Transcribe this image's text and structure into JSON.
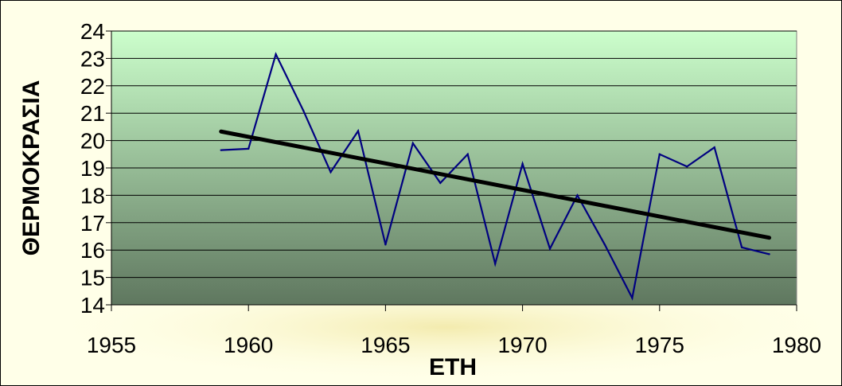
{
  "chart_data": {
    "type": "line",
    "title": "",
    "xlabel": "ΕΤΗ",
    "ylabel": "ΘΕΡΜΟΚΡΑΣΙΑ",
    "xlim": [
      1955,
      1980
    ],
    "ylim": [
      14,
      24
    ],
    "x_ticks": [
      1955,
      1960,
      1965,
      1970,
      1975,
      1980
    ],
    "y_ticks": [
      14,
      15,
      16,
      17,
      18,
      19,
      20,
      21,
      22,
      23,
      24
    ],
    "grid": true,
    "legend": "none",
    "series": [
      {
        "x": [
          1959,
          1960,
          1961,
          1962,
          1963,
          1964,
          1965,
          1966,
          1967,
          1968,
          1969,
          1970,
          1971,
          1972,
          1973,
          1974,
          1975,
          1976,
          1977,
          1978,
          1979
        ],
        "y": [
          19.65,
          19.7,
          23.15,
          21.1,
          18.85,
          20.35,
          16.2,
          19.9,
          18.45,
          19.5,
          15.5,
          19.15,
          16.05,
          18.0,
          16.2,
          14.25,
          19.5,
          19.05,
          19.75,
          16.1,
          15.85
        ],
        "color": "#000080"
      }
    ],
    "trendline": {
      "x": [
        1959,
        1979
      ],
      "y": [
        20.33,
        16.45
      ],
      "color": "#000000"
    },
    "plot_gradient": [
      "#ccffcc",
      "#5f775f"
    ]
  }
}
